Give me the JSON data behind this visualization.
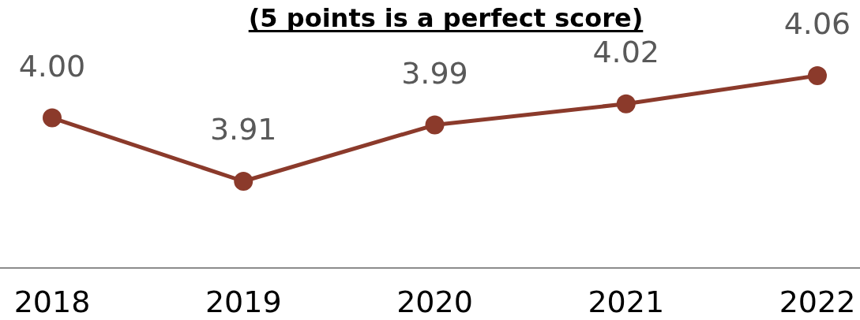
{
  "chart_data": {
    "type": "line",
    "title": "(5 points is a perfect score)",
    "categories": [
      "2018",
      "2019",
      "2020",
      "2021",
      "2022"
    ],
    "series": [
      {
        "color": "#8b3a2b",
        "values": [
          4.0,
          3.91,
          3.99,
          4.02,
          4.06
        ],
        "value_labels": [
          "4.00",
          "3.91",
          "3.99",
          "4.02",
          "4.06"
        ]
      }
    ],
    "marker": "circle",
    "line_style": "solid"
  }
}
